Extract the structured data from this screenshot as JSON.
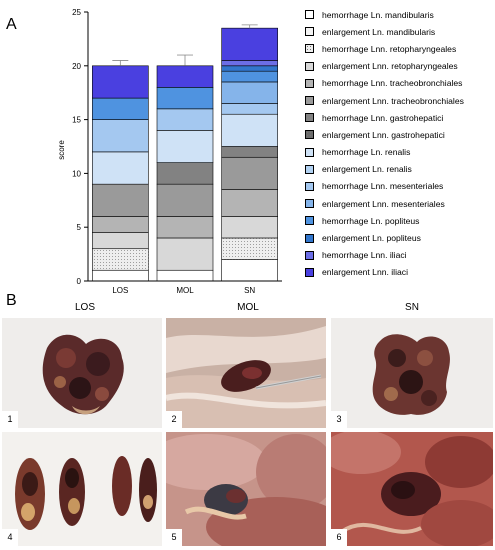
{
  "panel_labels": {
    "a": "A",
    "b": "B"
  },
  "chart_data": {
    "type": "bar",
    "stacked": true,
    "categories": [
      "LOS",
      "MOL",
      "SN"
    ],
    "ylabel": "score",
    "xlabel": "",
    "ylim": [
      0,
      25
    ],
    "yticks": [
      0,
      5,
      10,
      15,
      20,
      25
    ],
    "grid": false,
    "legend_position": "right",
    "series": [
      {
        "name": "hemorrhage Ln. mandibularis",
        "color": "#ffffff",
        "pattern": "none",
        "values": [
          1,
          1,
          2
        ],
        "error": [
          0,
          0,
          0
        ]
      },
      {
        "name": "enlargement Ln. mandibularis",
        "color": "#f3f3f3",
        "pattern": "none",
        "values": [
          0,
          0,
          0
        ],
        "error": [
          0,
          0,
          0
        ]
      },
      {
        "name": "hemorrhage Lnn. retopharyngeales",
        "color": "#eeeeee",
        "pattern": "dots",
        "values": [
          2,
          0,
          2
        ],
        "error": [
          1,
          0,
          0
        ]
      },
      {
        "name": "enlargement Lnn. retopharyngeales",
        "color": "#d8d8d8",
        "pattern": "none",
        "values": [
          1.5,
          3,
          2
        ],
        "error": [
          1,
          2,
          1
        ]
      },
      {
        "name": "hemorrhage Lnn. tracheobronchiales",
        "color": "#b4b4b4",
        "pattern": "none",
        "values": [
          1.5,
          2,
          2.5
        ],
        "error": [
          0.5,
          0,
          0.8
        ]
      },
      {
        "name": "enlargement Lnn. tracheobronchiales",
        "color": "#9a9a9a",
        "pattern": "none",
        "values": [
          3,
          3,
          3
        ],
        "error": [
          0.5,
          1,
          0.5
        ]
      },
      {
        "name": "hemorrhage Lnn. gastrohepatici",
        "color": "#828282",
        "pattern": "none",
        "values": [
          0,
          2,
          1
        ],
        "error": [
          0,
          0,
          0
        ]
      },
      {
        "name": "enlargement Lnn. gastrohepatici",
        "color": "#6c6c6c",
        "pattern": "dots",
        "values": [
          0,
          0,
          0
        ],
        "error": [
          0,
          0,
          0
        ]
      },
      {
        "name": "hemorrhage Ln. renalis",
        "color": "#cfe2f6",
        "pattern": "none",
        "values": [
          3,
          3,
          3
        ],
        "error": [
          1,
          0.5,
          1
        ]
      },
      {
        "name": "enlargement Ln. renalis",
        "color": "#b2d2f2",
        "pattern": "none",
        "values": [
          0,
          0,
          0
        ],
        "error": [
          0,
          0,
          0
        ]
      },
      {
        "name": "hemorrhage Lnn. mesenteriales",
        "color": "#a4c8f0",
        "pattern": "none",
        "values": [
          3,
          2,
          1
        ],
        "error": [
          0.5,
          0.5,
          0.5
        ]
      },
      {
        "name": "enlargement Lnn. mesenteriales",
        "color": "#85b4ea",
        "pattern": "none",
        "values": [
          0,
          0,
          2
        ],
        "error": [
          0,
          0,
          0.8
        ]
      },
      {
        "name": "hemorrhage Ln. popliteus",
        "color": "#4f93e0",
        "pattern": "none",
        "values": [
          2,
          2,
          1
        ],
        "error": [
          0.5,
          0.3,
          0.3
        ]
      },
      {
        "name": "enlargement Ln. popliteus",
        "color": "#3276cc",
        "pattern": "none",
        "values": [
          0,
          0,
          0.5
        ],
        "error": [
          0,
          0,
          0
        ]
      },
      {
        "name": "hemorrhage Lnn. iliaci",
        "color": "#6c6ee6",
        "pattern": "none",
        "values": [
          0,
          0,
          0.5
        ],
        "error": [
          0,
          0,
          0
        ]
      },
      {
        "name": "enlargement Lnn. iliaci",
        "color": "#4a40e0",
        "pattern": "none",
        "values": [
          3,
          2,
          3
        ],
        "error": [
          0.5,
          1,
          0.3
        ]
      }
    ]
  },
  "photos": {
    "column_labels": [
      "LOS",
      "MOL",
      "SN"
    ],
    "panels": [
      {
        "number": "1",
        "subject": "kidney-shaped hemorrhagic lymph node",
        "background": "#efedeb"
      },
      {
        "number": "2",
        "subject": "dissected tissue with probe",
        "background": "#c9b1a5"
      },
      {
        "number": "3",
        "subject": "kidney-shaped hemorrhagic lymph node",
        "background": "#efedeb"
      },
      {
        "number": "4",
        "subject": "sectioned hemorrhagic lymph nodes",
        "background": "#f3f1ee"
      },
      {
        "number": "5",
        "subject": "in-situ organs with lymph node",
        "background": "#c6948a"
      },
      {
        "number": "6",
        "subject": "in-situ hemorrhagic tissue",
        "background": "#b2574d"
      }
    ]
  }
}
